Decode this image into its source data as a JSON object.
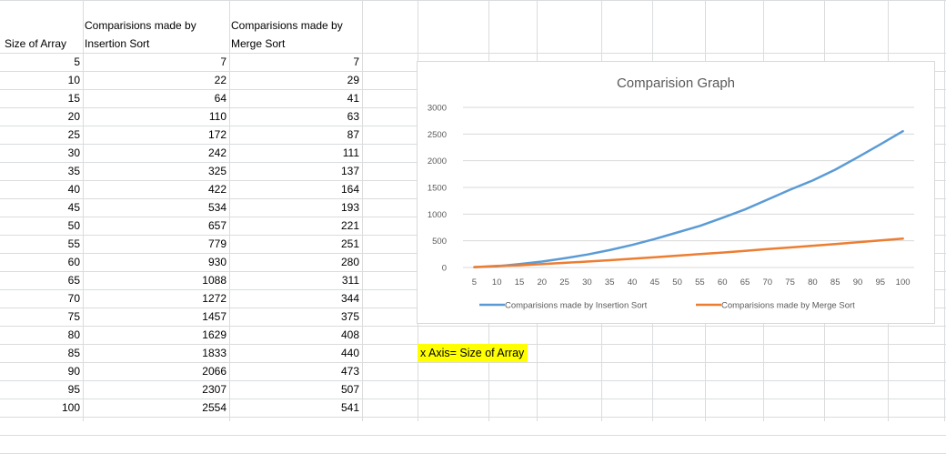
{
  "table": {
    "headers": {
      "size": "Size of Array",
      "insertion_line1": "Comparisions made by",
      "insertion_line2": "Insertion Sort",
      "merge_line1": "Comparisions made by",
      "merge_line2": "Merge Sort"
    },
    "rows": [
      {
        "size": "5",
        "insertion": "7",
        "merge": "7"
      },
      {
        "size": "10",
        "insertion": "22",
        "merge": "29"
      },
      {
        "size": "15",
        "insertion": "64",
        "merge": "41"
      },
      {
        "size": "20",
        "insertion": "110",
        "merge": "63"
      },
      {
        "size": "25",
        "insertion": "172",
        "merge": "87"
      },
      {
        "size": "30",
        "insertion": "242",
        "merge": "111"
      },
      {
        "size": "35",
        "insertion": "325",
        "merge": "137"
      },
      {
        "size": "40",
        "insertion": "422",
        "merge": "164"
      },
      {
        "size": "45",
        "insertion": "534",
        "merge": "193"
      },
      {
        "size": "50",
        "insertion": "657",
        "merge": "221"
      },
      {
        "size": "55",
        "insertion": "779",
        "merge": "251"
      },
      {
        "size": "60",
        "insertion": "930",
        "merge": "280"
      },
      {
        "size": "65",
        "insertion": "1088",
        "merge": "311"
      },
      {
        "size": "70",
        "insertion": "1272",
        "merge": "344"
      },
      {
        "size": "75",
        "insertion": "1457",
        "merge": "375"
      },
      {
        "size": "80",
        "insertion": "1629",
        "merge": "408"
      },
      {
        "size": "85",
        "insertion": "1833",
        "merge": "440"
      },
      {
        "size": "90",
        "insertion": "2066",
        "merge": "473"
      },
      {
        "size": "95",
        "insertion": "2307",
        "merge": "507"
      },
      {
        "size": "100",
        "insertion": "2554",
        "merge": "541"
      }
    ]
  },
  "note": "x Axis= Size of Array",
  "colors": {
    "insertion": "#5b9bd5",
    "merge": "#ed7d31",
    "note_bg": "#ffff00",
    "grid": "#d9d9d9"
  },
  "chart_data": {
    "type": "line",
    "title": "Comparision Graph",
    "xlabel": "",
    "ylabel": "",
    "categories": [
      "5",
      "10",
      "15",
      "20",
      "25",
      "30",
      "35",
      "40",
      "45",
      "50",
      "55",
      "60",
      "65",
      "70",
      "75",
      "80",
      "85",
      "90",
      "95",
      "100"
    ],
    "ylim": [
      0,
      3000
    ],
    "yticks": [
      "0",
      "500",
      "1000",
      "1500",
      "2000",
      "2500",
      "3000"
    ],
    "grid": true,
    "legend_position": "bottom",
    "series": [
      {
        "name": "Comparisions made by Insertion Sort",
        "color": "#5b9bd5",
        "values": [
          7,
          22,
          64,
          110,
          172,
          242,
          325,
          422,
          534,
          657,
          779,
          930,
          1088,
          1272,
          1457,
          1629,
          1833,
          2066,
          2307,
          2554
        ]
      },
      {
        "name": "Comparisions made by Merge Sort",
        "color": "#ed7d31",
        "values": [
          7,
          29,
          41,
          63,
          87,
          111,
          137,
          164,
          193,
          221,
          251,
          280,
          311,
          344,
          375,
          408,
          440,
          473,
          507,
          541
        ]
      }
    ]
  }
}
